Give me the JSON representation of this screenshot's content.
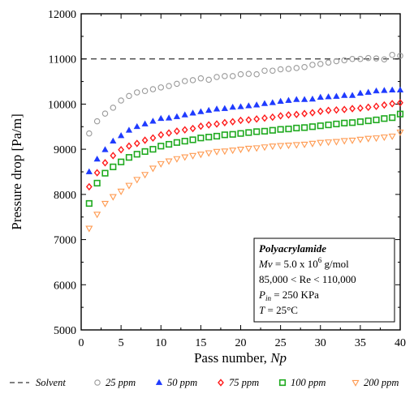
{
  "chart_data": {
    "type": "scatter",
    "xlabel": "Pass number, ",
    "xlabel_var": "Np",
    "ylabel": "Pressure drop [Pa/m]",
    "xlim": [
      0,
      40
    ],
    "ylim": [
      5000,
      12000
    ],
    "x_ticks": [
      0,
      5,
      10,
      15,
      20,
      25,
      30,
      35,
      40
    ],
    "y_ticks": [
      5000,
      6000,
      7000,
      8000,
      9000,
      10000,
      11000,
      12000
    ],
    "x_tick_labels": [
      "0",
      "5",
      "10",
      "15",
      "20",
      "25",
      "30",
      "35",
      "40"
    ],
    "y_tick_labels": [
      "5000",
      "6000",
      "7000",
      "8000",
      "9000",
      "10000",
      "11000",
      "12000"
    ],
    "grid": false,
    "legend_position": "bottom",
    "reference_line": {
      "name": "Solvent",
      "y": 11000,
      "style": "dashed",
      "color": "#000000"
    },
    "series": [
      {
        "name": "25 ppm",
        "marker": "circle-open",
        "color": "#9a9a9a",
        "x": [
          1,
          2,
          3,
          4,
          5,
          6,
          7,
          8,
          9,
          10,
          11,
          12,
          13,
          14,
          15,
          16,
          17,
          18,
          19,
          20,
          21,
          22,
          23,
          24,
          25,
          26,
          27,
          28,
          29,
          30,
          31,
          32,
          33,
          34,
          35,
          36,
          37,
          38,
          39,
          40
        ],
        "y": [
          9350,
          9620,
          9790,
          9920,
          10080,
          10180,
          10260,
          10290,
          10330,
          10370,
          10400,
          10450,
          10510,
          10530,
          10570,
          10540,
          10600,
          10620,
          10620,
          10660,
          10670,
          10660,
          10740,
          10740,
          10770,
          10780,
          10800,
          10820,
          10870,
          10890,
          10920,
          10950,
          10970,
          11000,
          11000,
          11020,
          11010,
          10990,
          11090,
          11070
        ]
      },
      {
        "name": "50 ppm",
        "marker": "triangle-filled",
        "color": "#1f3bff",
        "x": [
          1,
          2,
          3,
          4,
          5,
          6,
          7,
          8,
          9,
          10,
          11,
          12,
          13,
          14,
          15,
          16,
          17,
          18,
          19,
          20,
          21,
          22,
          23,
          24,
          25,
          26,
          27,
          28,
          29,
          30,
          31,
          32,
          33,
          34,
          35,
          36,
          37,
          38,
          39,
          40
        ],
        "y": [
          8500,
          8780,
          8990,
          9180,
          9300,
          9420,
          9500,
          9560,
          9620,
          9680,
          9690,
          9720,
          9760,
          9800,
          9830,
          9860,
          9890,
          9900,
          9930,
          9940,
          9960,
          9980,
          10010,
          10030,
          10060,
          10080,
          10100,
          10100,
          10110,
          10150,
          10160,
          10170,
          10190,
          10190,
          10240,
          10260,
          10290,
          10300,
          10310,
          10310
        ]
      },
      {
        "name": "75 ppm",
        "marker": "diamond-open",
        "color": "#ff1a1a",
        "x": [
          1,
          2,
          3,
          4,
          5,
          6,
          7,
          8,
          9,
          10,
          11,
          12,
          13,
          14,
          15,
          16,
          17,
          18,
          19,
          20,
          21,
          22,
          23,
          24,
          25,
          26,
          27,
          28,
          29,
          30,
          31,
          32,
          33,
          34,
          35,
          36,
          37,
          38,
          39,
          40
        ],
        "y": [
          8170,
          8480,
          8700,
          8860,
          8990,
          9070,
          9130,
          9200,
          9250,
          9320,
          9360,
          9400,
          9430,
          9460,
          9510,
          9540,
          9560,
          9590,
          9610,
          9640,
          9650,
          9670,
          9690,
          9710,
          9740,
          9760,
          9770,
          9790,
          9810,
          9840,
          9860,
          9870,
          9880,
          9900,
          9910,
          9930,
          9950,
          9980,
          10010,
          10030
        ]
      },
      {
        "name": "100 ppm",
        "marker": "square-open",
        "color": "#1faa1f",
        "x": [
          1,
          2,
          3,
          4,
          5,
          6,
          7,
          8,
          9,
          10,
          11,
          12,
          13,
          14,
          15,
          16,
          17,
          18,
          19,
          20,
          21,
          22,
          23,
          24,
          25,
          26,
          27,
          28,
          29,
          30,
          31,
          32,
          33,
          34,
          35,
          36,
          37,
          38,
          39,
          40
        ],
        "y": [
          7800,
          8250,
          8470,
          8610,
          8720,
          8820,
          8890,
          8950,
          9000,
          9070,
          9110,
          9150,
          9180,
          9210,
          9250,
          9270,
          9290,
          9320,
          9330,
          9350,
          9370,
          9390,
          9400,
          9420,
          9440,
          9450,
          9470,
          9480,
          9500,
          9520,
          9540,
          9560,
          9580,
          9590,
          9610,
          9630,
          9650,
          9680,
          9700,
          9780
        ]
      },
      {
        "name": "200 ppm",
        "marker": "triangle-down-open",
        "color": "#ff9a50",
        "x": [
          1,
          2,
          3,
          4,
          5,
          6,
          7,
          8,
          9,
          10,
          11,
          12,
          13,
          14,
          15,
          16,
          17,
          18,
          19,
          20,
          21,
          22,
          23,
          24,
          25,
          26,
          27,
          28,
          29,
          30,
          31,
          32,
          33,
          34,
          35,
          36,
          37,
          38,
          39,
          40
        ],
        "y": [
          7250,
          7560,
          7800,
          7950,
          8070,
          8200,
          8330,
          8440,
          8580,
          8680,
          8740,
          8790,
          8830,
          8860,
          8890,
          8920,
          8950,
          8960,
          8980,
          9000,
          9020,
          9030,
          9050,
          9070,
          9080,
          9090,
          9100,
          9110,
          9130,
          9150,
          9160,
          9170,
          9190,
          9200,
          9220,
          9240,
          9250,
          9270,
          9290,
          9380
        ]
      }
    ],
    "annotation": {
      "title": "Polyacrylamide",
      "mv_var": "Mv",
      "mv_value": " = 5.0 x 10",
      "mv_exp": "6",
      "mv_unit": " g/mol",
      "re_line": "85,000 < Re < 110,000",
      "pin_var": "P",
      "pin_sub": "in",
      "pin_value": " = 250 KPa",
      "t_var": "T",
      "t_value": " = 25°C"
    }
  }
}
